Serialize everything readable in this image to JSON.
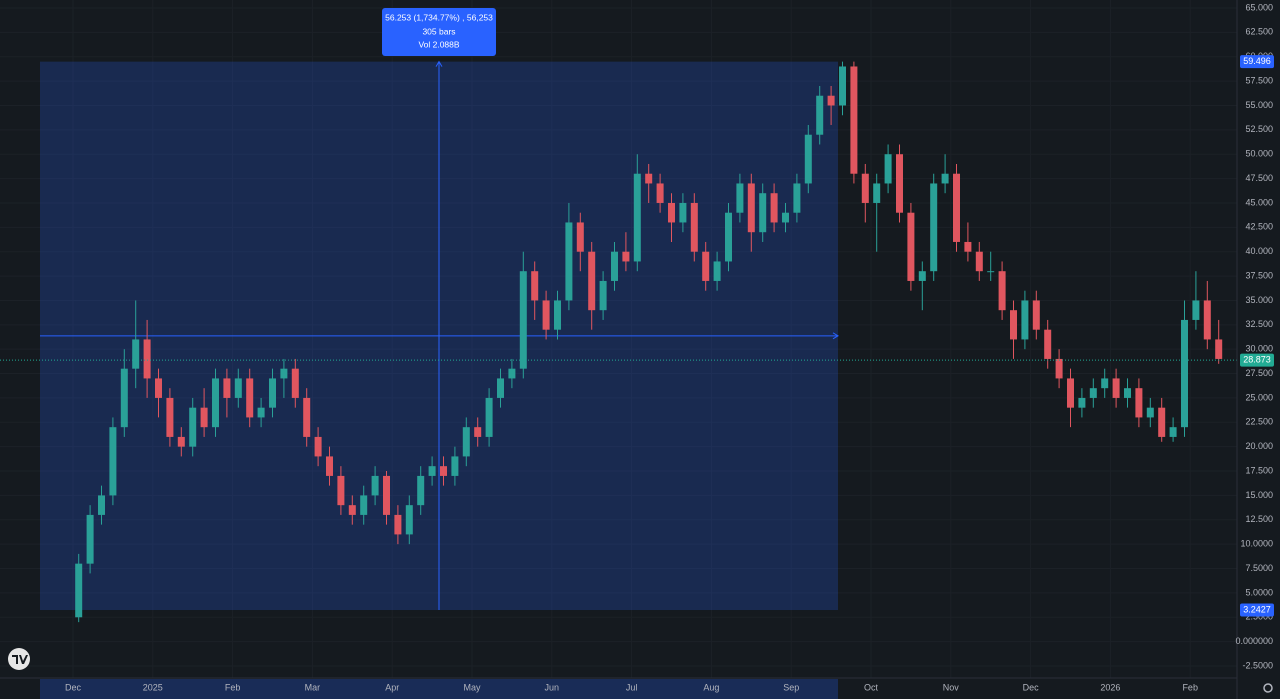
{
  "chart_data": {
    "type": "candlestick",
    "up_color": "#2aa198",
    "down_color": "#e0565f",
    "ylim": [
      -3.73,
      65.82
    ],
    "yticks": [
      {
        "value": 65,
        "label": "65.000"
      },
      {
        "value": 62.5,
        "label": "62.500"
      },
      {
        "value": 60,
        "label": "60.000"
      },
      {
        "value": 57.5,
        "label": "57.500"
      },
      {
        "value": 55,
        "label": "55.000"
      },
      {
        "value": 52.5,
        "label": "52.500"
      },
      {
        "value": 50,
        "label": "50.000"
      },
      {
        "value": 47.5,
        "label": "47.500"
      },
      {
        "value": 45,
        "label": "45.000"
      },
      {
        "value": 42.5,
        "label": "42.500"
      },
      {
        "value": 40,
        "label": "40.000"
      },
      {
        "value": 37.5,
        "label": "37.500"
      },
      {
        "value": 35,
        "label": "35.000"
      },
      {
        "value": 32.5,
        "label": "32.500"
      },
      {
        "value": 30,
        "label": "30.000"
      },
      {
        "value": 27.5,
        "label": "27.500"
      },
      {
        "value": 25,
        "label": "25.000"
      },
      {
        "value": 22.5,
        "label": "22.500"
      },
      {
        "value": 20,
        "label": "20.000"
      },
      {
        "value": 17.5,
        "label": "17.500"
      },
      {
        "value": 15,
        "label": "15.000"
      },
      {
        "value": 12.5,
        "label": "12.500"
      },
      {
        "value": 10,
        "label": "10.0000"
      },
      {
        "value": 7.5,
        "label": "7.5000"
      },
      {
        "value": 5,
        "label": "5.0000"
      },
      {
        "value": 2.5,
        "label": "2.5000"
      },
      {
        "value": 0,
        "label": "0.000000"
      },
      {
        "value": -2.5,
        "label": "-2.5000"
      }
    ],
    "last_price": 28.873,
    "measure": {
      "high": 59.496,
      "low": 3.2427,
      "text": "56.253 (1,734.77%) , 56,253",
      "bars": "305 bars",
      "volume": "Vol 2.088B"
    },
    "months": [
      {
        "label": "Dec",
        "candles": [
          [
            2.5,
            9,
            2,
            8
          ],
          [
            8,
            14,
            7,
            13
          ],
          [
            13,
            16,
            12,
            15
          ],
          [
            15,
            23,
            14,
            22
          ],
          [
            22,
            30,
            21,
            28
          ],
          [
            28,
            35,
            26,
            31
          ],
          [
            31,
            33,
            25,
            27
          ]
        ]
      },
      {
        "label": "2025",
        "candles": [
          [
            27,
            28,
            23,
            25
          ],
          [
            25,
            26,
            20,
            21
          ],
          [
            21,
            22,
            19,
            20
          ],
          [
            20,
            25,
            19,
            24
          ],
          [
            24,
            26,
            21,
            22
          ],
          [
            22,
            28,
            21,
            27
          ],
          [
            27,
            28,
            23,
            25
          ]
        ]
      },
      {
        "label": "Feb",
        "candles": [
          [
            25,
            28,
            24,
            27
          ],
          [
            27,
            28,
            22,
            23
          ],
          [
            23,
            25,
            22,
            24
          ],
          [
            24,
            28,
            23,
            27
          ],
          [
            27,
            29,
            25,
            28
          ],
          [
            28,
            29,
            24,
            25
          ],
          [
            25,
            26,
            20,
            21
          ]
        ]
      },
      {
        "label": "Mar",
        "candles": [
          [
            21,
            22,
            18,
            19
          ],
          [
            19,
            20,
            16,
            17
          ],
          [
            17,
            18,
            13,
            14
          ],
          [
            14,
            15,
            12,
            13
          ],
          [
            13,
            16,
            12,
            15
          ],
          [
            15,
            18,
            14,
            17
          ],
          [
            17,
            17.5,
            12,
            13
          ]
        ]
      },
      {
        "label": "Apr",
        "candles": [
          [
            13,
            14,
            10,
            11
          ],
          [
            11,
            15,
            10,
            14
          ],
          [
            14,
            18,
            13,
            17
          ],
          [
            17,
            19,
            16,
            18
          ],
          [
            18,
            19,
            16,
            17
          ],
          [
            17,
            20,
            16,
            19
          ],
          [
            19,
            23,
            18,
            22
          ]
        ]
      },
      {
        "label": "May",
        "candles": [
          [
            22,
            23,
            20,
            21
          ],
          [
            21,
            26,
            20,
            25
          ],
          [
            25,
            28,
            24,
            27
          ],
          [
            27,
            29,
            26,
            28
          ],
          [
            28,
            40,
            27,
            38
          ],
          [
            38,
            39,
            33,
            35
          ],
          [
            35,
            36,
            31,
            32
          ]
        ]
      },
      {
        "label": "Jun",
        "candles": [
          [
            32,
            36,
            31,
            35
          ],
          [
            35,
            45,
            34,
            43
          ],
          [
            43,
            44,
            38,
            40
          ],
          [
            40,
            41,
            32,
            34
          ],
          [
            34,
            38,
            33,
            37
          ],
          [
            37,
            41,
            36,
            40
          ],
          [
            40,
            42,
            38,
            39
          ]
        ]
      },
      {
        "label": "Jul",
        "candles": [
          [
            39,
            50,
            38,
            48
          ],
          [
            48,
            49,
            45,
            47
          ],
          [
            47,
            48,
            44,
            45
          ],
          [
            45,
            46,
            41,
            43
          ],
          [
            43,
            46,
            42,
            45
          ],
          [
            45,
            46,
            39,
            40
          ],
          [
            40,
            41,
            36,
            37
          ]
        ]
      },
      {
        "label": "Aug",
        "candles": [
          [
            37,
            40,
            36,
            39
          ],
          [
            39,
            45,
            38,
            44
          ],
          [
            44,
            48,
            43,
            47
          ],
          [
            47,
            48,
            40,
            42
          ],
          [
            42,
            47,
            41,
            46
          ],
          [
            46,
            47,
            42,
            43
          ],
          [
            43,
            45,
            42,
            44
          ]
        ]
      },
      {
        "label": "Sep",
        "candles": [
          [
            44,
            48,
            43,
            47
          ],
          [
            47,
            53,
            46,
            52
          ],
          [
            52,
            57,
            51,
            56
          ],
          [
            56,
            57,
            53,
            55
          ],
          [
            55,
            59.5,
            54,
            59
          ],
          [
            59,
            59.5,
            47,
            48
          ],
          [
            48,
            49,
            43,
            45
          ]
        ]
      },
      {
        "label": "Oct",
        "candles": [
          [
            45,
            48,
            40,
            47
          ],
          [
            47,
            51,
            46,
            50
          ],
          [
            50,
            51,
            43,
            44
          ],
          [
            44,
            45,
            36,
            37
          ],
          [
            37,
            39,
            34,
            38
          ],
          [
            38,
            48,
            37,
            47
          ],
          [
            47,
            50,
            46,
            48
          ]
        ]
      },
      {
        "label": "Nov",
        "candles": [
          [
            48,
            49,
            40,
            41
          ],
          [
            41,
            43,
            39,
            40
          ],
          [
            40,
            41,
            37,
            38
          ],
          [
            38,
            40,
            37,
            38
          ],
          [
            38,
            39,
            33,
            34
          ],
          [
            34,
            35,
            29,
            31
          ],
          [
            31,
            36,
            30,
            35
          ]
        ]
      },
      {
        "label": "Dec",
        "candles": [
          [
            35,
            36,
            31,
            32
          ],
          [
            32,
            33,
            28,
            29
          ],
          [
            29,
            30,
            26,
            27
          ],
          [
            27,
            28,
            22,
            24
          ],
          [
            24,
            26,
            23,
            25
          ],
          [
            25,
            27,
            24,
            26
          ],
          [
            26,
            28,
            25,
            27
          ]
        ]
      },
      {
        "label": "2026",
        "candles": [
          [
            27,
            28,
            24,
            25
          ],
          [
            25,
            27,
            24,
            26
          ],
          [
            26,
            27,
            22,
            23
          ],
          [
            23,
            25,
            22,
            24
          ],
          [
            24,
            25,
            20.5,
            21
          ],
          [
            21,
            23,
            20.5,
            22
          ],
          [
            22,
            35,
            21,
            33
          ]
        ]
      },
      {
        "label": "Feb",
        "candles": [
          [
            33,
            38,
            32,
            35
          ],
          [
            35,
            37,
            30,
            31
          ],
          [
            31,
            33,
            28.5,
            29
          ]
        ]
      }
    ]
  }
}
